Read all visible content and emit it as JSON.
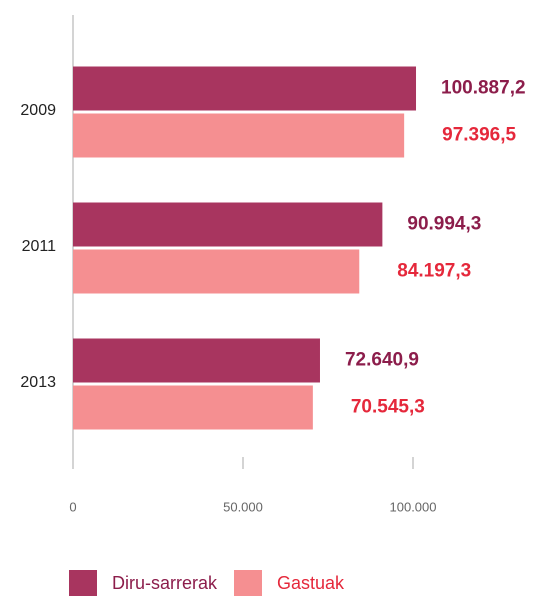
{
  "chart_data": {
    "type": "barh",
    "categories": [
      "2009",
      "2011",
      "2013"
    ],
    "series": [
      {
        "name": "Diru-sarrerak",
        "color": "#a8355f",
        "label_color": "#8c1d4b",
        "values": [
          100887.2,
          90994.3,
          72640.9
        ],
        "value_labels": [
          "100.887,2",
          "90.994,3",
          "72.640,9"
        ]
      },
      {
        "name": "Gastuak",
        "color": "#f58f91",
        "label_color": "#e5283b",
        "values": [
          97396.5,
          84197.3,
          70545.3
        ],
        "value_labels": [
          "97.396,5",
          "84.197,3",
          "70.545,3"
        ]
      }
    ],
    "xlim": [
      0,
      135000
    ],
    "xticks": [
      0,
      {
        "value": 50000,
        "label": "50.000"
      },
      {
        "value": 100000,
        "label": "100.000"
      }
    ],
    "legend": "bottom"
  }
}
